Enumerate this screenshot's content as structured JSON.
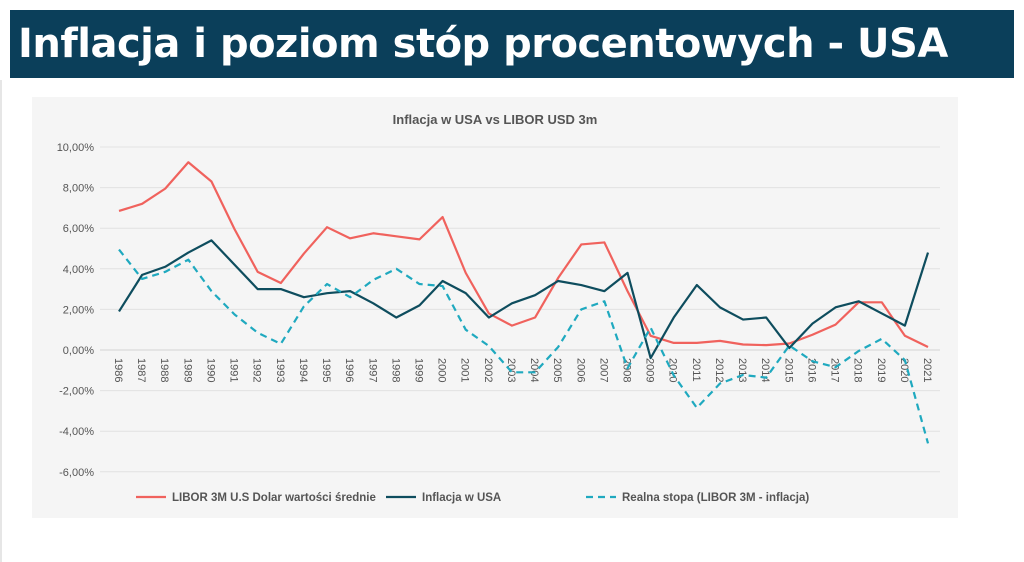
{
  "header": {
    "title": "Inflacja i poziom stóp procentowych - USA"
  },
  "chart_data": {
    "type": "line",
    "title": "Inflacja w USA vs LIBOR USD 3m",
    "xlabel": "",
    "ylabel": "",
    "ylim": [
      -6,
      10
    ],
    "yticks": [
      "-6,00%",
      "-4,00%",
      "-2,00%",
      "0,00%",
      "2,00%",
      "4,00%",
      "6,00%",
      "8,00%",
      "10,00%"
    ],
    "ytick_values": [
      -6,
      -4,
      -2,
      0,
      2,
      4,
      6,
      8,
      10
    ],
    "grid": true,
    "legend_position": "bottom",
    "categories": [
      "1986",
      "1987",
      "1988",
      "1989",
      "1990",
      "1991",
      "1992",
      "1993",
      "1994",
      "1995",
      "1996",
      "1997",
      "1998",
      "1999",
      "2000",
      "2001",
      "2002",
      "2003",
      "2004",
      "2005",
      "2006",
      "2007",
      "2008",
      "2009",
      "2010",
      "2011",
      "2012",
      "2013",
      "2014",
      "2015",
      "2016",
      "2017",
      "2018",
      "2019",
      "2020",
      "2021"
    ],
    "series": [
      {
        "name": "LIBOR 3M U.S Dolar wartości średnie",
        "color": "#f0625d",
        "dash": false,
        "values": [
          6.85,
          7.2,
          7.95,
          9.25,
          8.3,
          5.95,
          3.85,
          3.3,
          4.75,
          6.05,
          5.5,
          5.75,
          5.6,
          5.45,
          6.55,
          3.8,
          1.8,
          1.2,
          1.6,
          3.55,
          5.2,
          5.3,
          2.9,
          0.7,
          0.35,
          0.35,
          0.45,
          0.27,
          0.24,
          0.32,
          0.75,
          1.25,
          2.35,
          2.35,
          0.7,
          0.15
        ]
      },
      {
        "name": "Inflacja w USA",
        "color": "#0e4d5e",
        "dash": false,
        "values": [
          1.9,
          3.7,
          4.1,
          4.8,
          5.4,
          4.2,
          3.0,
          3.0,
          2.6,
          2.8,
          2.9,
          2.3,
          1.6,
          2.2,
          3.4,
          2.8,
          1.6,
          2.3,
          2.7,
          3.4,
          3.2,
          2.9,
          3.8,
          -0.4,
          1.6,
          3.2,
          2.1,
          1.5,
          1.6,
          0.1,
          1.3,
          2.1,
          2.4,
          1.8,
          1.2,
          4.8
        ]
      },
      {
        "name": "Realna stopa (LIBOR 3M - inflacja)",
        "color": "#1fa9bf",
        "dash": true,
        "values": [
          4.95,
          3.5,
          3.85,
          4.45,
          2.9,
          1.75,
          0.85,
          0.3,
          2.15,
          3.25,
          2.6,
          3.45,
          4.0,
          3.25,
          3.15,
          1.0,
          0.2,
          -1.1,
          -1.1,
          0.15,
          2.0,
          2.4,
          -0.9,
          1.1,
          -1.25,
          -2.85,
          -1.65,
          -1.23,
          -1.36,
          0.22,
          -0.55,
          -0.85,
          -0.05,
          0.55,
          -0.5,
          -4.6
        ]
      }
    ]
  }
}
